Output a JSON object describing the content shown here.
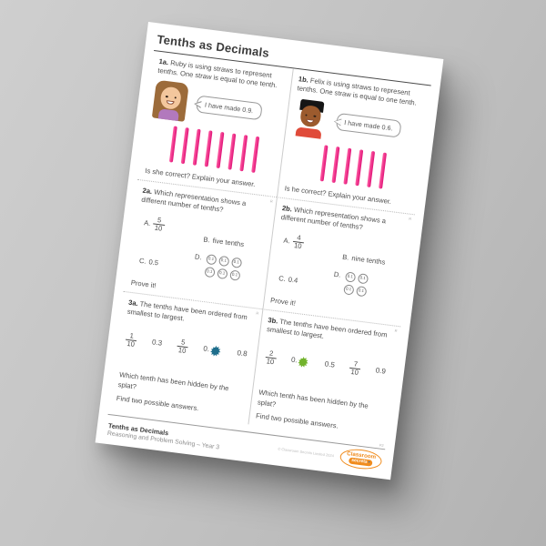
{
  "sheet": {
    "title": "Tenths as Decimals",
    "corner_mark": "R",
    "page_mark": "P2"
  },
  "q1a": {
    "number": "1a.",
    "text": "Ruby is using straws to represent tenths. One straw is equal to one tenth.",
    "bubble": "I have made 0.9.",
    "straw_count": 8,
    "prompt": "Is she correct? Explain your answer."
  },
  "q1b": {
    "number": "1b.",
    "text": "Felix is using straws to represent tenths. One straw is equal to one tenth.",
    "bubble": "I have made 0.6.",
    "straw_count": 6,
    "prompt": "Is he correct? Explain your answer."
  },
  "q2a": {
    "number": "2a.",
    "text": "Which representation shows a different number of tenths?",
    "option_a_label": "A.",
    "option_a_numerator": "5",
    "option_a_denominator": "10",
    "option_b_label": "B.",
    "option_b_text": "five tenths",
    "option_c_label": "C.",
    "option_c_text": "0.5",
    "option_d_label": "D.",
    "counter_value": "0.1",
    "counter_count": 6,
    "prove": "Prove it!"
  },
  "q2b": {
    "number": "2b.",
    "text": "Which representation shows a different number of tenths?",
    "option_a_label": "A.",
    "option_a_numerator": "4",
    "option_a_denominator": "10",
    "option_b_label": "B.",
    "option_b_text": "nine tenths",
    "option_c_label": "C.",
    "option_c_text": "0.4",
    "option_d_label": "D.",
    "counter_value": "0.1",
    "counter_count": 4,
    "prove": "Prove it!"
  },
  "q3a": {
    "number": "3a.",
    "text": "The tenths have been ordered from smallest to largest.",
    "seq1_numerator": "1",
    "seq1_denominator": "10",
    "seq2": "0.3",
    "seq3_numerator": "5",
    "seq3_denominator": "10",
    "seq4_prefix": "0.",
    "splat_color": "#1e6e8c",
    "seq5": "0.8",
    "prompt1": "Which tenth has been hidden by the splat?",
    "prompt2": "Find two possible answers."
  },
  "q3b": {
    "number": "3b.",
    "text": "The tenths have been ordered from smallest to largest.",
    "seq1_numerator": "2",
    "seq1_denominator": "10",
    "seq2_prefix": "0.",
    "splat_color": "#72b32c",
    "seq3": "0.5",
    "seq4_numerator": "7",
    "seq4_denominator": "10",
    "seq5": "0.9",
    "prompt1": "Which tenth has been hidden by the splat?",
    "prompt2": "Find two possible answers."
  },
  "footer": {
    "title": "Tenths as Decimals",
    "subtitle": "Reasoning and Problem Solving – Year 3",
    "copyright": "© Classroom Secrets Limited 2024",
    "logo_line1": "Classroom",
    "logo_line2": "secrets"
  },
  "colors": {
    "straw_pink": "#e8197d",
    "splat_teal": "#1e6e8c",
    "splat_green": "#72b32c",
    "logo_orange": "#f08c1e"
  }
}
